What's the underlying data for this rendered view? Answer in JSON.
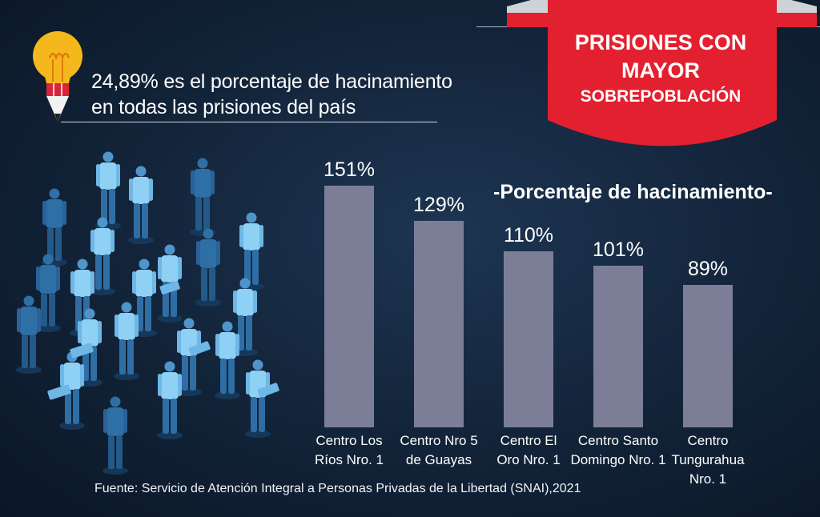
{
  "header": {
    "title_line1": "PRISIONES CON",
    "title_line2": "MAYOR",
    "title_line3": "SOBREPOBLACIÓN"
  },
  "stat": {
    "line1": "24,89% es el porcentaje de hacinamiento",
    "line2": "en todas las prisiones del país"
  },
  "chart_data": {
    "type": "bar",
    "title": "PRISIONES CON MAYOR SOBREPOBLACIÓN",
    "subtitle": "-Porcentaje de hacinamiento-",
    "categories": [
      [
        "Centro Los",
        "Ríos Nro. 1"
      ],
      [
        "Centro Nro 5",
        "de Guayas"
      ],
      [
        "Centro El",
        "Oro Nro. 1"
      ],
      [
        "Centro Santo",
        "Domingo Nro. 1"
      ],
      [
        "Centro",
        "Tungurahua",
        "Nro. 1"
      ]
    ],
    "values": [
      151,
      129,
      110,
      101,
      89
    ],
    "value_labels": [
      "151%",
      "129%",
      "110%",
      "101%",
      "89%"
    ],
    "unit": "%",
    "xlabel": "",
    "ylabel": "Porcentaje de hacinamiento",
    "ylim": [
      0,
      151
    ],
    "grid": false,
    "legend": "none"
  },
  "footer": {
    "source": "Fuente: Servicio de Atención Integral a Personas Privadas de la Libertad (SNAI),2021"
  },
  "colors": {
    "background": "#122338",
    "bar": "#7c7e98",
    "banner": "#e2202f",
    "bulb": "#f5b81c",
    "silhouette": "#2e6fa6",
    "silhouette_highlight": "#8fd0f5"
  },
  "icons": {
    "lightbulb": "lightbulb-icon",
    "people": "people-silhouettes-illustration"
  }
}
